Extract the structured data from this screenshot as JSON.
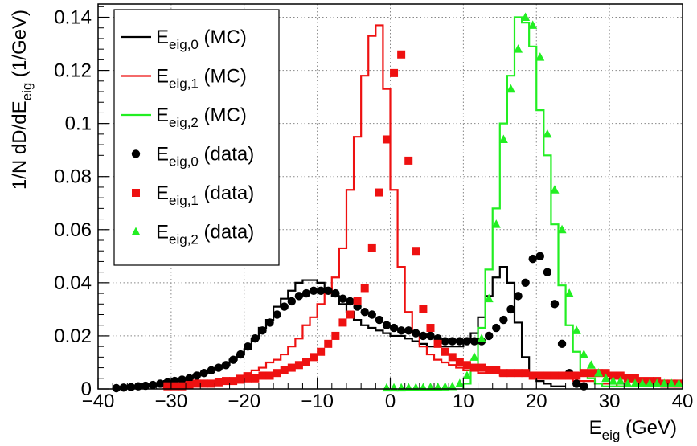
{
  "chart_data": {
    "type": "line",
    "xlabel_main": "E",
    "xlabel_sub": "eig",
    "xlabel_unit": " (GeV)",
    "ylabel_main": "1/N dD/dE",
    "ylabel_sub": "eig",
    "ylabel_unit": " (1/GeV)",
    "xlim": [
      -40,
      40
    ],
    "ylim": [
      0,
      0.145
    ],
    "xticks": [
      -40,
      -30,
      -20,
      -10,
      0,
      10,
      20,
      30,
      40
    ],
    "xtick_labels": [
      "−40",
      "−30",
      "−20",
      "−10",
      "0",
      "10",
      "20",
      "30",
      "40"
    ],
    "yticks": [
      0,
      0.02,
      0.04,
      0.06,
      0.08,
      0.1,
      0.12,
      0.14
    ],
    "ytick_labels": [
      "0",
      "0.02",
      "0.04",
      "0.06",
      "0.08",
      "0.1",
      "0.12",
      "0.14"
    ],
    "grid": true,
    "legend_position": "top-left",
    "hist_edges_start": -31,
    "hist_bin_width": 1,
    "mc_series": [
      {
        "name_main": "E",
        "name_sub": "eig,0",
        "name_suffix": " (MC)",
        "color": "#000000",
        "values": [
          0.003,
          0.003,
          0.004,
          0.004,
          0.005,
          0.006,
          0.007,
          0.008,
          0.009,
          0.011,
          0.013,
          0.015,
          0.019,
          0.023,
          0.026,
          0.031,
          0.034,
          0.037,
          0.04,
          0.041,
          0.041,
          0.04,
          0.038,
          0.035,
          0.032,
          0.029,
          0.026,
          0.024,
          0.023,
          0.022,
          0.021,
          0.02,
          0.02,
          0.019,
          0.018,
          0.017,
          0.016,
          0.016,
          0.016,
          0.016,
          0.016,
          0.018,
          0.021,
          0.027,
          0.035,
          0.042,
          0.046,
          0.04,
          0.025,
          0.012,
          0.006,
          0.003,
          0.002,
          0.001,
          0.001
        ]
      },
      {
        "name_main": "E",
        "name_sub": "eig,1",
        "name_suffix": " (MC)",
        "color": "#ee1111",
        "values": [
          0.001,
          0.001,
          0.001,
          0.001,
          0.002,
          0.002,
          0.002,
          0.003,
          0.003,
          0.004,
          0.005,
          0.006,
          0.007,
          0.008,
          0.01,
          0.011,
          0.013,
          0.016,
          0.019,
          0.024,
          0.027,
          0.032,
          0.036,
          0.042,
          0.053,
          0.075,
          0.095,
          0.118,
          0.133,
          0.137,
          0.113,
          0.075,
          0.046,
          0.029,
          0.021,
          0.016,
          0.013,
          0.011,
          0.01,
          0.009,
          0.008,
          0.007,
          0.007,
          0.006,
          0.006,
          0.006,
          0.005,
          0.005,
          0.005,
          0.005,
          0.005,
          0.005,
          0.005,
          0.004,
          0.004,
          0.004,
          0.003,
          0.003,
          0.003,
          0.002,
          0.002,
          0.002,
          0.001,
          0.001,
          0.001,
          0.001,
          0.001,
          0.001,
          0.001,
          0.001,
          0.001
        ]
      },
      {
        "name_main": "E",
        "name_sub": "eig,2",
        "name_suffix": " (MC)",
        "color": "#22ee22",
        "hist_start": 10,
        "values": [
          0.002,
          0.008,
          0.023,
          0.045,
          0.068,
          0.1,
          0.118,
          0.14,
          0.138,
          0.129,
          0.105,
          0.088,
          0.062,
          0.039,
          0.024,
          0.014,
          0.007,
          0.004,
          0.002,
          0.001,
          0.001,
          0.001,
          0.001,
          0.001,
          0.001,
          0.001,
          0.001,
          0.001,
          0.001,
          0.001
        ]
      }
    ],
    "data_series": [
      {
        "name_main": "E",
        "name_sub": "eig,0",
        "name_suffix": " (data)",
        "color": "#000000",
        "marker": "circle",
        "x": [
          -37.5,
          -36.5,
          -35.5,
          -34.5,
          -33.5,
          -32.5,
          -31.5,
          -30.5,
          -29.5,
          -28.5,
          -27.5,
          -26.5,
          -25.5,
          -24.5,
          -23.5,
          -22.5,
          -21.5,
          -20.5,
          -19.5,
          -18.5,
          -17.5,
          -16.5,
          -15.5,
          -14.5,
          -13.5,
          -12.5,
          -11.5,
          -10.5,
          -9.5,
          -8.5,
          -7.5,
          -6.5,
          -5.5,
          -4.5,
          -3.5,
          -2.5,
          -1.5,
          -0.5,
          0.5,
          1.5,
          2.5,
          3.5,
          4.5,
          5.5,
          6.5,
          7.5,
          8.5,
          9.5,
          10.5,
          11.5,
          12.5,
          13.5,
          14.5,
          15.5,
          16.5,
          17.5,
          18.5,
          19.5,
          20.5,
          21.5,
          22.5,
          23.5,
          24.5,
          25.5,
          26.5
        ],
        "y": [
          0.0003,
          0.0005,
          0.0007,
          0.001,
          0.0012,
          0.0015,
          0.002,
          0.0025,
          0.003,
          0.0035,
          0.004,
          0.005,
          0.006,
          0.007,
          0.008,
          0.009,
          0.011,
          0.013,
          0.016,
          0.019,
          0.022,
          0.025,
          0.028,
          0.031,
          0.033,
          0.035,
          0.036,
          0.037,
          0.037,
          0.037,
          0.036,
          0.034,
          0.033,
          0.031,
          0.029,
          0.028,
          0.026,
          0.024,
          0.023,
          0.022,
          0.022,
          0.021,
          0.02,
          0.02,
          0.019,
          0.018,
          0.018,
          0.018,
          0.018,
          0.018,
          0.018,
          0.02,
          0.023,
          0.026,
          0.03,
          0.035,
          0.04,
          0.049,
          0.05,
          0.044,
          0.032,
          0.017,
          0.006,
          0.002,
          0.001
        ]
      },
      {
        "name_main": "E",
        "name_sub": "eig,1",
        "name_suffix": " (data)",
        "color": "#ee1111",
        "marker": "square",
        "x": [
          -30.5,
          -29.5,
          -28.5,
          -27.5,
          -26.5,
          -25.5,
          -24.5,
          -23.5,
          -22.5,
          -21.5,
          -20.5,
          -19.5,
          -18.5,
          -17.5,
          -16.5,
          -15.5,
          -14.5,
          -13.5,
          -12.5,
          -11.5,
          -10.5,
          -9.5,
          -8.5,
          -7.5,
          -6.5,
          -5.5,
          -4.5,
          -3.5,
          -2.5,
          -1.5,
          -0.5,
          0.5,
          1.5,
          2.5,
          3.5,
          4.5,
          5.5,
          6.5,
          7.5,
          8.5,
          9.5,
          10.5,
          11.5,
          12.5,
          13.5,
          14.5,
          15.5,
          16.5,
          17.5,
          18.5,
          19.5,
          20.5,
          21.5,
          22.5,
          23.5,
          24.5,
          25.5,
          26.5,
          27.5,
          28.5,
          29.5,
          30.5,
          31.5,
          32.5,
          33.5,
          34.5,
          35.5,
          36.5,
          37.5,
          38.5,
          39.5
        ],
        "y": [
          0.001,
          0.001,
          0.001,
          0.0015,
          0.002,
          0.002,
          0.002,
          0.0025,
          0.003,
          0.003,
          0.0035,
          0.004,
          0.004,
          0.005,
          0.005,
          0.006,
          0.007,
          0.008,
          0.009,
          0.01,
          0.012,
          0.014,
          0.017,
          0.02,
          0.025,
          0.028,
          0.033,
          0.038,
          0.053,
          0.074,
          0.094,
          0.119,
          0.126,
          0.086,
          0.052,
          0.03,
          0.023,
          0.017,
          0.014,
          0.012,
          0.01,
          0.009,
          0.008,
          0.008,
          0.007,
          0.007,
          0.006,
          0.006,
          0.006,
          0.006,
          0.005,
          0.005,
          0.005,
          0.005,
          0.005,
          0.005,
          0.005,
          0.006,
          0.006,
          0.006,
          0.006,
          0.005,
          0.005,
          0.004,
          0.004,
          0.003,
          0.003,
          0.003,
          0.002,
          0.002,
          0.002
        ]
      },
      {
        "name_main": "E",
        "name_sub": "eig,2",
        "name_suffix": " (data)",
        "color": "#22ee22",
        "marker": "triangle",
        "x": [
          -0.5,
          0.5,
          1.5,
          2.5,
          3.5,
          4.5,
          5.5,
          6.5,
          7.5,
          8.5,
          9.5,
          10.5,
          11.5,
          12.5,
          13.5,
          14.5,
          15.5,
          16.5,
          17.5,
          18.5,
          19.5,
          20.5,
          21.5,
          22.5,
          23.5,
          24.5,
          25.5,
          26.5,
          27.5,
          28.5,
          29.5,
          30.5,
          31.5,
          32.5,
          33.5,
          34.5,
          35.5,
          36.5,
          37.5,
          38.5,
          39.5
        ],
        "y": [
          0.0004,
          0.0004,
          0.0004,
          0.0005,
          0.0005,
          0.0005,
          0.0006,
          0.0007,
          0.0008,
          0.0009,
          0.002,
          0.005,
          0.012,
          0.019,
          0.034,
          0.062,
          0.094,
          0.113,
          0.128,
          0.14,
          0.137,
          0.125,
          0.096,
          0.075,
          0.06,
          0.036,
          0.022,
          0.013,
          0.009,
          0.006,
          0.004,
          0.003,
          0.003,
          0.002,
          0.002,
          0.002,
          0.002,
          0.002,
          0.002,
          0.002,
          0.002
        ]
      }
    ]
  }
}
